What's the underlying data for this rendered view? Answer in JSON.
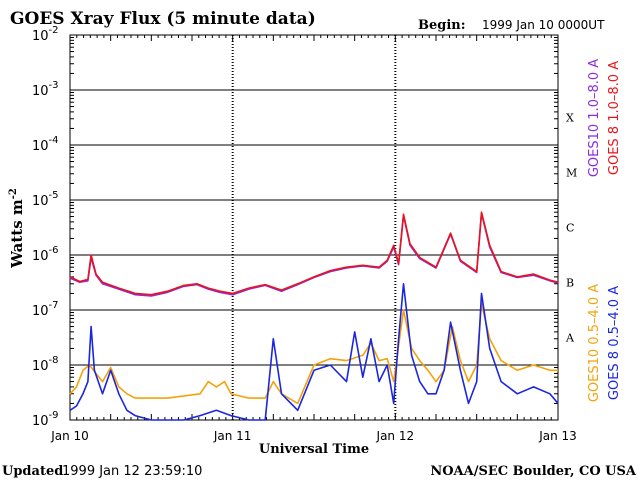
{
  "chart_data": {
    "type": "line",
    "title": "GOES Xray Flux (5 minute data)",
    "begin_label": "Begin:",
    "begin_value": "1999 Jan 10 0000UT",
    "xlabel": "Universal Time",
    "ylabel": "Watts m",
    "ylabel_sup": "-2",
    "yscale": "log",
    "ylim": [
      1e-09,
      0.01
    ],
    "xlim": [
      0,
      3
    ],
    "x_unit": "days since 1999 Jan 10 0000UT",
    "grid": true,
    "y_ticks": [
      {
        "base": "10",
        "exp": "-2"
      },
      {
        "base": "10",
        "exp": "-3"
      },
      {
        "base": "10",
        "exp": "-4"
      },
      {
        "base": "10",
        "exp": "-5"
      },
      {
        "base": "10",
        "exp": "-6"
      },
      {
        "base": "10",
        "exp": "-7"
      },
      {
        "base": "10",
        "exp": "-8"
      },
      {
        "base": "10",
        "exp": "-9"
      }
    ],
    "x_ticks": [
      "Jan 10",
      "Jan 11",
      "Jan 12",
      "Jan 13"
    ],
    "flare_classes": [
      "X",
      "M",
      "C",
      "B",
      "A"
    ],
    "legend_long": [
      {
        "name": "GOES10 1.0–8.0 A",
        "color": "#8a2be2"
      },
      {
        "name": "GOES 8 1.0–8.0 A",
        "color": "#e8141c"
      }
    ],
    "legend_short": [
      {
        "name": "GOES10 0.5–4.0 A",
        "color": "#f5a20a"
      },
      {
        "name": "GOES 8 0.5–4.0 A",
        "color": "#1b26e0"
      }
    ],
    "series": [
      {
        "name": "GOES 8 1.0–8.0 A",
        "color": "#e8141c",
        "points": [
          [
            0.0,
            4e-07
          ],
          [
            0.06,
            3.3e-07
          ],
          [
            0.11,
            3.6e-07
          ],
          [
            0.13,
            1e-06
          ],
          [
            0.16,
            4.5e-07
          ],
          [
            0.2,
            3.2e-07
          ],
          [
            0.3,
            2.5e-07
          ],
          [
            0.4,
            2e-07
          ],
          [
            0.5,
            1.9e-07
          ],
          [
            0.6,
            2.2e-07
          ],
          [
            0.7,
            2.8e-07
          ],
          [
            0.78,
            3e-07
          ],
          [
            0.85,
            2.5e-07
          ],
          [
            0.92,
            2.2e-07
          ],
          [
            1.0,
            2e-07
          ],
          [
            1.1,
            2.5e-07
          ],
          [
            1.2,
            2.9e-07
          ],
          [
            1.3,
            2.3e-07
          ],
          [
            1.4,
            3e-07
          ],
          [
            1.5,
            4e-07
          ],
          [
            1.6,
            5.2e-07
          ],
          [
            1.7,
            6e-07
          ],
          [
            1.8,
            6.5e-07
          ],
          [
            1.9,
            6e-07
          ],
          [
            1.95,
            8e-07
          ],
          [
            1.99,
            1.5e-06
          ],
          [
            2.02,
            7e-07
          ],
          [
            2.05,
            5.5e-06
          ],
          [
            2.09,
            1.6e-06
          ],
          [
            2.15,
            9e-07
          ],
          [
            2.25,
            6e-07
          ],
          [
            2.34,
            2.5e-06
          ],
          [
            2.4,
            8e-07
          ],
          [
            2.5,
            5e-07
          ],
          [
            2.53,
            6e-06
          ],
          [
            2.58,
            1.5e-06
          ],
          [
            2.65,
            5e-07
          ],
          [
            2.75,
            4e-07
          ],
          [
            2.85,
            4.5e-07
          ],
          [
            2.95,
            3.5e-07
          ],
          [
            3.0,
            3.2e-07
          ]
        ]
      },
      {
        "name": "GOES10 1.0–8.0 A",
        "color": "#8a2be2",
        "points": [
          [
            0.0,
            3.8e-07
          ],
          [
            0.06,
            3.2e-07
          ],
          [
            0.11,
            3.4e-07
          ],
          [
            0.13,
            9e-07
          ],
          [
            0.16,
            4.3e-07
          ],
          [
            0.2,
            3e-07
          ],
          [
            0.3,
            2.4e-07
          ],
          [
            0.4,
            1.9e-07
          ],
          [
            0.5,
            1.8e-07
          ],
          [
            0.6,
            2.1e-07
          ],
          [
            0.7,
            2.7e-07
          ],
          [
            0.78,
            2.9e-07
          ],
          [
            0.85,
            2.4e-07
          ],
          [
            0.92,
            2.1e-07
          ],
          [
            1.0,
            1.9e-07
          ],
          [
            1.1,
            2.4e-07
          ],
          [
            1.2,
            2.8e-07
          ],
          [
            1.3,
            2.2e-07
          ],
          [
            1.4,
            2.9e-07
          ],
          [
            1.5,
            3.9e-07
          ],
          [
            1.6,
            5e-07
          ],
          [
            1.7,
            5.8e-07
          ],
          [
            1.8,
            6.3e-07
          ],
          [
            1.9,
            5.8e-07
          ],
          [
            1.95,
            7.7e-07
          ],
          [
            1.99,
            1.4e-06
          ],
          [
            2.02,
            6.7e-07
          ],
          [
            2.05,
            5.2e-06
          ],
          [
            2.09,
            1.5e-06
          ],
          [
            2.15,
            8.6e-07
          ],
          [
            2.25,
            5.8e-07
          ],
          [
            2.34,
            2.4e-06
          ],
          [
            2.4,
            7.7e-07
          ],
          [
            2.5,
            4.8e-07
          ],
          [
            2.53,
            5.7e-06
          ],
          [
            2.58,
            1.4e-06
          ],
          [
            2.65,
            4.8e-07
          ],
          [
            2.75,
            3.9e-07
          ],
          [
            2.85,
            4.3e-07
          ],
          [
            2.95,
            3.4e-07
          ],
          [
            3.0,
            3.1e-07
          ]
        ]
      },
      {
        "name": "GOES10 0.5–4.0 A",
        "color": "#f5a20a",
        "points": [
          [
            0.0,
            3e-09
          ],
          [
            0.04,
            4e-09
          ],
          [
            0.08,
            8e-09
          ],
          [
            0.12,
            1e-08
          ],
          [
            0.16,
            7e-09
          ],
          [
            0.2,
            5e-09
          ],
          [
            0.25,
            9e-09
          ],
          [
            0.3,
            4e-09
          ],
          [
            0.35,
            3e-09
          ],
          [
            0.4,
            2.5e-09
          ],
          [
            0.6,
            2.5e-09
          ],
          [
            0.8,
            3e-09
          ],
          [
            0.85,
            5e-09
          ],
          [
            0.9,
            4e-09
          ],
          [
            0.95,
            5e-09
          ],
          [
            0.99,
            3e-09
          ],
          [
            1.1,
            2.5e-09
          ],
          [
            1.2,
            2.5e-09
          ],
          [
            1.25,
            5e-09
          ],
          [
            1.3,
            3e-09
          ],
          [
            1.4,
            2e-09
          ],
          [
            1.5,
            1e-08
          ],
          [
            1.6,
            1.3e-08
          ],
          [
            1.7,
            1.2e-08
          ],
          [
            1.8,
            1.5e-08
          ],
          [
            1.85,
            2.5e-08
          ],
          [
            1.9,
            1.2e-08
          ],
          [
            1.95,
            1.3e-08
          ],
          [
            1.99,
            5e-09
          ],
          [
            2.05,
            1e-07
          ],
          [
            2.1,
            2e-08
          ],
          [
            2.15,
            1.2e-08
          ],
          [
            2.2,
            8e-09
          ],
          [
            2.25,
            5e-09
          ],
          [
            2.3,
            8e-09
          ],
          [
            2.35,
            5e-08
          ],
          [
            2.4,
            1.2e-08
          ],
          [
            2.45,
            5e-09
          ],
          [
            2.5,
            1e-08
          ],
          [
            2.53,
            1.3e-07
          ],
          [
            2.58,
            3e-08
          ],
          [
            2.65,
            1.2e-08
          ],
          [
            2.75,
            8e-09
          ],
          [
            2.85,
            1e-08
          ],
          [
            2.95,
            8e-09
          ],
          [
            3.0,
            8e-09
          ]
        ]
      },
      {
        "name": "GOES 8 0.5–4.0 A",
        "color": "#1b26e0",
        "points": [
          [
            0.0,
            1.5e-09
          ],
          [
            0.04,
            1.8e-09
          ],
          [
            0.08,
            3e-09
          ],
          [
            0.11,
            5e-09
          ],
          [
            0.13,
            5e-08
          ],
          [
            0.15,
            8e-09
          ],
          [
            0.2,
            3e-09
          ],
          [
            0.25,
            8e-09
          ],
          [
            0.3,
            3e-09
          ],
          [
            0.35,
            1.5e-09
          ],
          [
            0.4,
            1.2e-09
          ],
          [
            0.5,
            1e-09
          ],
          [
            0.6,
            1e-09
          ],
          [
            0.7,
            1e-09
          ],
          [
            0.8,
            1.2e-09
          ],
          [
            0.9,
            1.5e-09
          ],
          [
            0.99,
            1.2e-09
          ],
          [
            1.1,
            1e-09
          ],
          [
            1.2,
            1e-09
          ],
          [
            1.25,
            3e-08
          ],
          [
            1.3,
            3e-09
          ],
          [
            1.4,
            1.5e-09
          ],
          [
            1.5,
            8e-09
          ],
          [
            1.6,
            1e-08
          ],
          [
            1.7,
            5e-09
          ],
          [
            1.75,
            4e-08
          ],
          [
            1.8,
            6e-09
          ],
          [
            1.85,
            3e-08
          ],
          [
            1.9,
            5e-09
          ],
          [
            1.95,
            1e-08
          ],
          [
            1.99,
            2e-09
          ],
          [
            2.02,
            3e-08
          ],
          [
            2.05,
            3e-07
          ],
          [
            2.1,
            1.5e-08
          ],
          [
            2.15,
            5e-09
          ],
          [
            2.2,
            3e-09
          ],
          [
            2.25,
            3e-09
          ],
          [
            2.3,
            8e-09
          ],
          [
            2.34,
            6e-08
          ],
          [
            2.4,
            8e-09
          ],
          [
            2.45,
            2e-09
          ],
          [
            2.5,
            5e-09
          ],
          [
            2.53,
            2e-07
          ],
          [
            2.58,
            2e-08
          ],
          [
            2.65,
            5e-09
          ],
          [
            2.75,
            3e-09
          ],
          [
            2.85,
            4e-09
          ],
          [
            2.95,
            3e-09
          ],
          [
            3.0,
            2e-09
          ]
        ]
      }
    ]
  },
  "footer": {
    "updated_label": "Updated",
    "updated_value": "1999 Jan 12 23:59:10",
    "credit": "NOAA/SEC Boulder, CO USA"
  }
}
